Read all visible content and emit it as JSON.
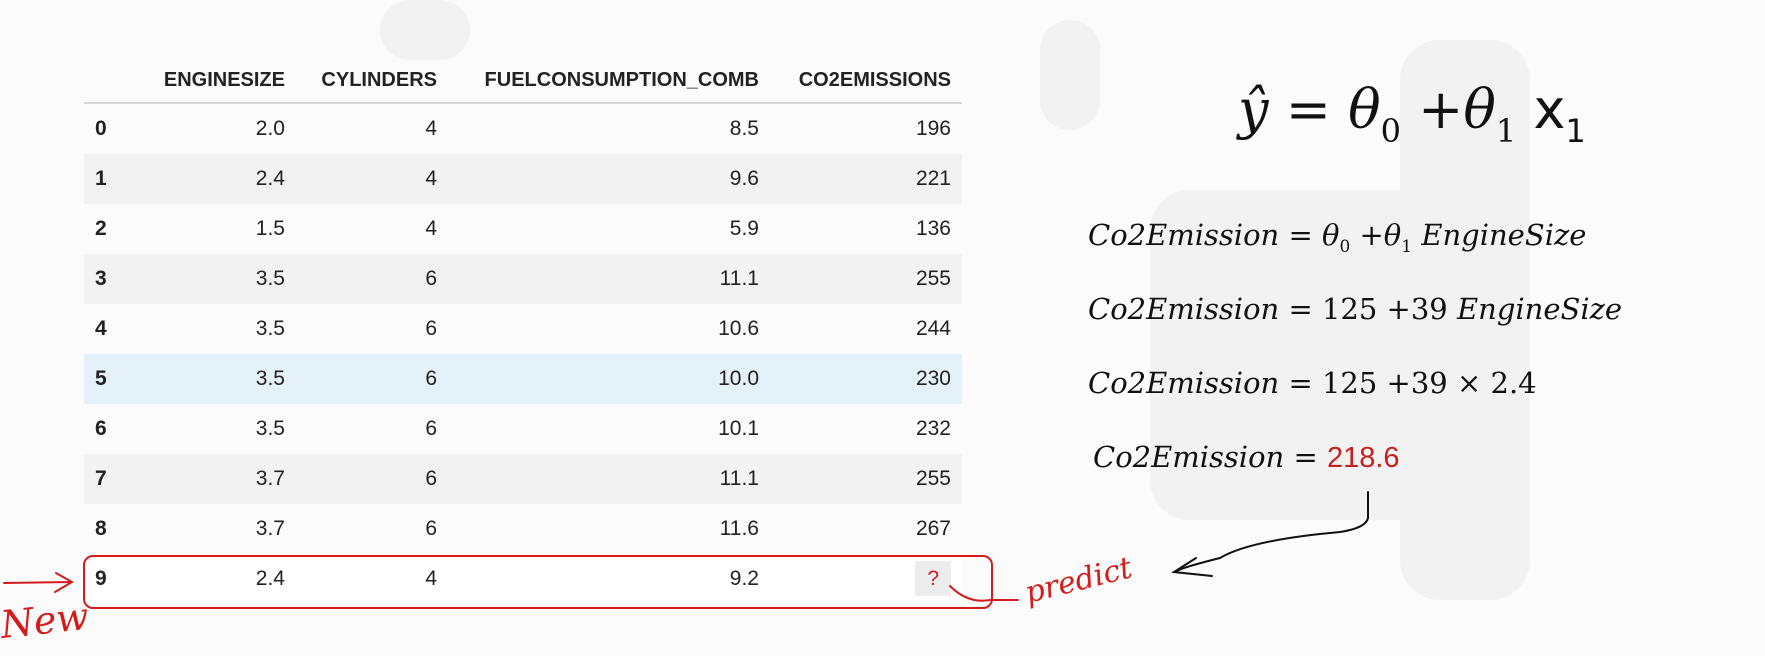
{
  "table": {
    "columns": [
      "ENGINESIZE",
      "CYLINDERS",
      "FUELCONSUMPTION_COMB",
      "CO2EMISSIONS"
    ],
    "rows": [
      {
        "index": "0",
        "engine": "2.0",
        "cylinders": "4",
        "fuel": "8.5",
        "co2": "196"
      },
      {
        "index": "1",
        "engine": "2.4",
        "cylinders": "4",
        "fuel": "9.6",
        "co2": "221"
      },
      {
        "index": "2",
        "engine": "1.5",
        "cylinders": "4",
        "fuel": "5.9",
        "co2": "136"
      },
      {
        "index": "3",
        "engine": "3.5",
        "cylinders": "6",
        "fuel": "11.1",
        "co2": "255"
      },
      {
        "index": "4",
        "engine": "3.5",
        "cylinders": "6",
        "fuel": "10.6",
        "co2": "244"
      },
      {
        "index": "5",
        "engine": "3.5",
        "cylinders": "6",
        "fuel": "10.0",
        "co2": "230"
      },
      {
        "index": "6",
        "engine": "3.5",
        "cylinders": "6",
        "fuel": "10.1",
        "co2": "232"
      },
      {
        "index": "7",
        "engine": "3.7",
        "cylinders": "6",
        "fuel": "11.1",
        "co2": "255"
      },
      {
        "index": "8",
        "engine": "3.7",
        "cylinders": "6",
        "fuel": "11.6",
        "co2": "267"
      },
      {
        "index": "9",
        "engine": "2.4",
        "cylinders": "4",
        "fuel": "9.2",
        "co2": "?"
      }
    ]
  },
  "main_equation": {
    "lhs": "ŷ",
    "eq": "=",
    "theta": "θ",
    "sub0": "0",
    "plus": "+",
    "sub1": "1",
    "x": "x",
    "xsub": "1"
  },
  "equations": {
    "eq1": {
      "lhs": "Co2Emission",
      "eq": "=",
      "theta": "θ",
      "sub0": "0",
      "plus": "+",
      "sub1": "1",
      "var": "EngineSize"
    },
    "eq2": {
      "lhs": "Co2Emission",
      "eq": "=",
      "a": "125",
      "plus": "+",
      "b": "39",
      "var": "EngineSize"
    },
    "eq3": {
      "lhs": "Co2Emission",
      "eq": "=",
      "a": "125",
      "plus": "+",
      "b": "39",
      "times": "×",
      "val": "2.4"
    },
    "eq4": {
      "lhs": "Co2Emission",
      "eq": "=",
      "result": "218.6"
    }
  },
  "annotations": {
    "new_label": "New",
    "predict_label": "predict",
    "ink_color": "#d41c1c"
  }
}
